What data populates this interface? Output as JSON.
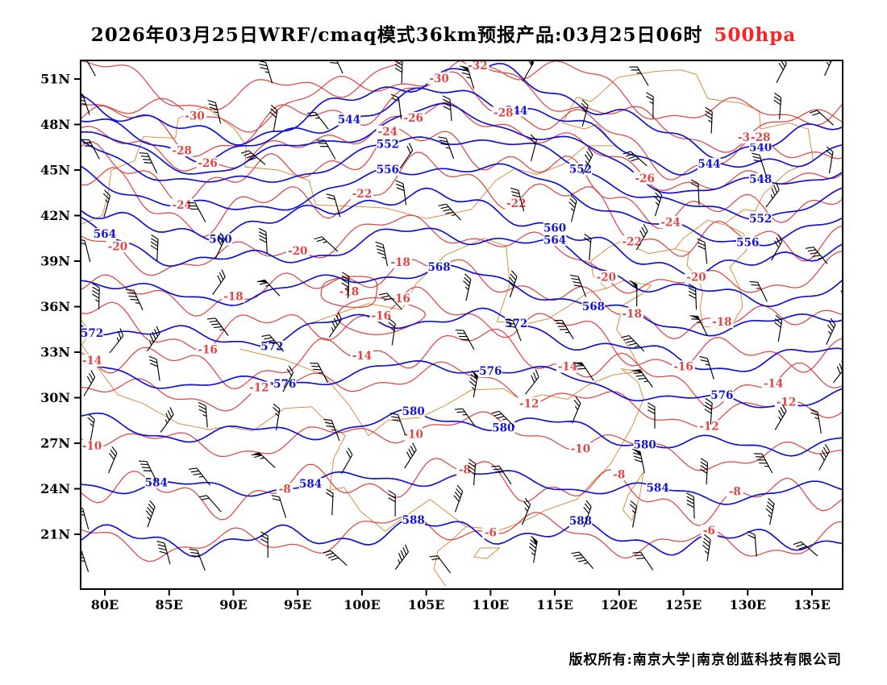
{
  "title": {
    "main": "2026年03月25日WRF/cmaq模式36km预报产品:03月25日06时",
    "level": "500hpa"
  },
  "footer": {
    "copyright": "版权所有:南京大学|南京创蓝科技有限公司"
  },
  "chart_data": {
    "type": "contour-map",
    "description_level": "500hpa",
    "x_axis": {
      "ticks": [
        {
          "label": "80E",
          "lon": 80
        },
        {
          "label": "85E",
          "lon": 85
        },
        {
          "label": "90E",
          "lon": 90
        },
        {
          "label": "95E",
          "lon": 95
        },
        {
          "label": "100E",
          "lon": 100
        },
        {
          "label": "105E",
          "lon": 105
        },
        {
          "label": "110E",
          "lon": 110
        },
        {
          "label": "115E",
          "lon": 115
        },
        {
          "label": "120E",
          "lon": 120
        },
        {
          "label": "125E",
          "lon": 125
        },
        {
          "label": "130E",
          "lon": 130
        },
        {
          "label": "135E",
          "lon": 135
        }
      ]
    },
    "y_axis": {
      "ticks": [
        {
          "label": "51N",
          "lat": 51
        },
        {
          "label": "48N",
          "lat": 48
        },
        {
          "label": "45N",
          "lat": 45
        },
        {
          "label": "42N",
          "lat": 42
        },
        {
          "label": "39N",
          "lat": 39
        },
        {
          "label": "36N",
          "lat": 36
        },
        {
          "label": "33N",
          "lat": 33
        },
        {
          "label": "30N",
          "lat": 30
        },
        {
          "label": "27N",
          "lat": 27
        },
        {
          "label": "24N",
          "lat": 24
        },
        {
          "label": "21N",
          "lat": 21
        }
      ]
    },
    "series": [
      {
        "name": "geopotential_height_dam",
        "color": "#1212d8",
        "line_width": 1.7,
        "contours": [
          {
            "value": 540,
            "base_lat": 49.2,
            "amp": 2.3,
            "tilt": -0.02,
            "label_lons": [
              131
            ]
          },
          {
            "value": 544,
            "base_lat": 47.8,
            "amp": 2.2,
            "tilt": -0.03,
            "label_lons": [
              99,
              112,
              127
            ]
          },
          {
            "value": 548,
            "base_lat": 46.6,
            "amp": 2.1,
            "tilt": -0.04,
            "label_lons": [
              131
            ]
          },
          {
            "value": 552,
            "base_lat": 45.2,
            "amp": 2.0,
            "tilt": -0.05,
            "label_lons": [
              102,
              117,
              131
            ]
          },
          {
            "value": 556,
            "base_lat": 43.4,
            "amp": 1.9,
            "tilt": -0.05,
            "label_lons": [
              102,
              130
            ]
          },
          {
            "value": 560,
            "base_lat": 41.4,
            "amp": 1.7,
            "tilt": -0.06,
            "label_lons": [
              89,
              115
            ]
          },
          {
            "value": 564,
            "base_lat": 39.4,
            "amp": 1.5,
            "tilt": -0.06,
            "label_lons": [
              80,
              115
            ]
          },
          {
            "value": 568,
            "base_lat": 36.9,
            "amp": 1.3,
            "tilt": -0.05,
            "label_lons": [
              106,
              118
            ]
          },
          {
            "value": 572,
            "base_lat": 34.2,
            "amp": 1.1,
            "tilt": -0.04,
            "label_lons": [
              79,
              93,
              112
            ]
          },
          {
            "value": 576,
            "base_lat": 31.2,
            "amp": 0.9,
            "tilt": -0.03,
            "label_lons": [
              94,
              110,
              128
            ]
          },
          {
            "value": 580,
            "base_lat": 27.9,
            "amp": 0.7,
            "tilt": -0.02,
            "label_lons": [
              104,
              111,
              122
            ]
          },
          {
            "value": 584,
            "base_lat": 24.3,
            "amp": 0.5,
            "tilt": -0.01,
            "label_lons": [
              84,
              96,
              123
            ]
          },
          {
            "value": 588,
            "base_lat": 20.9,
            "amp": 0.4,
            "tilt": 0.0,
            "label_lons": [
              104,
              117
            ]
          }
        ]
      },
      {
        "name": "temperature_c",
        "color": "#e04545",
        "line_width": 1.25,
        "contours": [
          {
            "value": -32,
            "base_lat": 50.8,
            "amp": 1.6,
            "tilt": -0.03,
            "label_lons": [
              109
            ]
          },
          {
            "value": -30,
            "base_lat": 49.6,
            "amp": 1.8,
            "tilt": -0.03,
            "label_lons": [
              87,
              106,
              130
            ]
          },
          {
            "value": -28,
            "base_lat": 48.2,
            "amp": 1.9,
            "tilt": -0.04,
            "label_lons": [
              86,
              111,
              131
            ]
          },
          {
            "value": -26,
            "base_lat": 46.7,
            "amp": 1.9,
            "tilt": -0.04,
            "label_lons": [
              88,
              104,
              122
            ]
          },
          {
            "value": -24,
            "base_lat": 44.9,
            "amp": 1.8,
            "tilt": -0.05,
            "label_lons": [
              86,
              102,
              124
            ]
          },
          {
            "value": -22,
            "base_lat": 42.9,
            "amp": 1.7,
            "tilt": -0.05,
            "label_lons": [
              100,
              112,
              121
            ]
          },
          {
            "value": -20,
            "base_lat": 39.6,
            "amp": 1.5,
            "tilt": -0.04,
            "label_lons": [
              81,
              95,
              119,
              126
            ]
          },
          {
            "value": -18,
            "base_lat": 37.0,
            "amp": 1.4,
            "tilt": -0.04,
            "label_lons": [
              90,
              103,
              121,
              128
            ]
          },
          {
            "value": -16,
            "base_lat": 34.6,
            "amp": 1.2,
            "tilt": -0.04,
            "label_lons": [
              88,
              103,
              125
            ]
          },
          {
            "value": -14,
            "base_lat": 32.4,
            "amp": 1.1,
            "tilt": -0.03,
            "label_lons": [
              79,
              100,
              116,
              132
            ]
          },
          {
            "value": -12,
            "base_lat": 30.4,
            "amp": 1.0,
            "tilt": -0.03,
            "label_lons": [
              92,
              113,
              127,
              133
            ]
          },
          {
            "value": -10,
            "base_lat": 27.3,
            "amp": 0.9,
            "tilt": -0.02,
            "label_lons": [
              79,
              104,
              117
            ]
          },
          {
            "value": -8,
            "base_lat": 24.1,
            "amp": 0.8,
            "tilt": -0.01,
            "label_lons": [
              94,
              108,
              120,
              129
            ]
          },
          {
            "value": -6,
            "base_lat": 20.9,
            "amp": 0.7,
            "tilt": 0.0,
            "label_lons": [
              110,
              127
            ]
          }
        ],
        "closed_cells": [
          {
            "value": -16,
            "center_lon": 101.5,
            "center_lat": 35.4,
            "rx": 3.2,
            "ry": 1.2
          },
          {
            "value": -18,
            "center_lon": 99.0,
            "center_lat": 37.0,
            "rx": 2.4,
            "ry": 1.0
          }
        ]
      }
    ],
    "wind_barbs": {
      "color": "#000000",
      "rows": 12,
      "cols": 13
    },
    "map_outline_color": "#d9822b",
    "frame_color": "#000000"
  }
}
